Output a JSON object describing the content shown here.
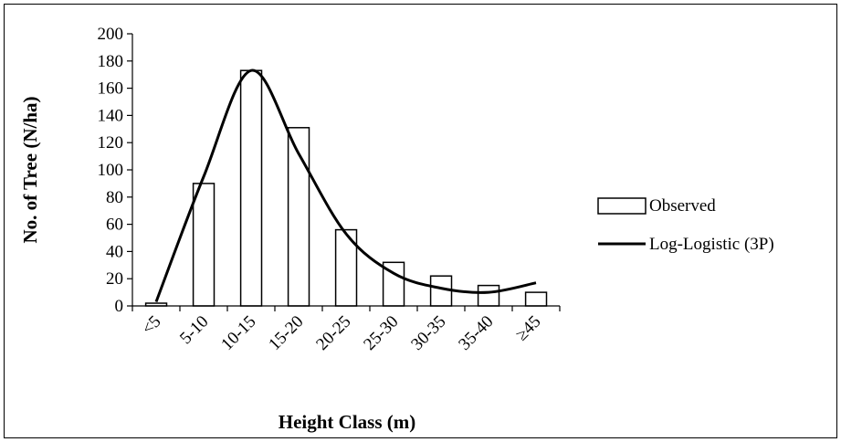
{
  "chart_data": {
    "type": "bar",
    "title": "",
    "xlabel": "Height Class (m)",
    "ylabel": "No. of Tree (N/ha)",
    "categories": [
      "<5",
      "5-10",
      "10-15",
      "15-20",
      "20-25",
      "25-30",
      "30-35",
      "35-40",
      "≥45"
    ],
    "ylim": [
      0,
      200
    ],
    "yticks": [
      0,
      20,
      40,
      60,
      80,
      100,
      120,
      140,
      160,
      180,
      200
    ],
    "grid": false,
    "legend_position": "right",
    "series": [
      {
        "name": "Observed",
        "type": "bar",
        "values": [
          2,
          90,
          173,
          131,
          56,
          32,
          22,
          15,
          10
        ],
        "fill": "#ffffff",
        "stroke": "#000000"
      },
      {
        "name": "Log-Logistic (3P)",
        "type": "line",
        "values": [
          3,
          95,
          173,
          112,
          53,
          24,
          13,
          10,
          17
        ],
        "smooth": true,
        "color": "#000000"
      }
    ]
  }
}
